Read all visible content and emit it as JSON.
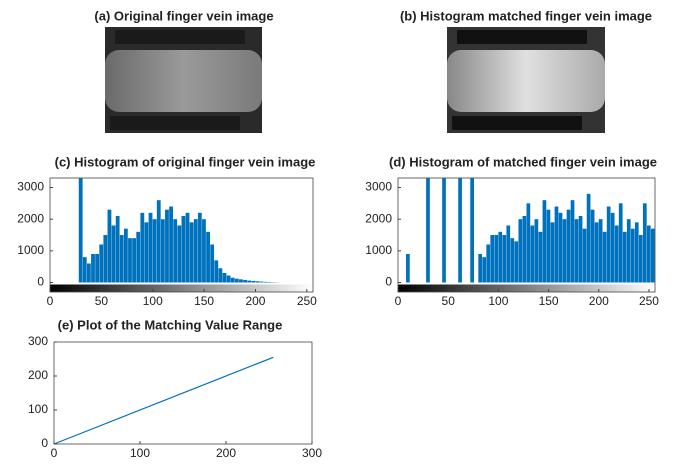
{
  "images": [
    {
      "title": "(a) Original finger vein image"
    },
    {
      "title": "(b) Histogram matched finger vein image"
    }
  ],
  "chart_data": [
    {
      "type": "histogram",
      "title": "(c) Histogram of original finger vein image",
      "color": "#0072bd",
      "bins": [
        0,
        4,
        8,
        12,
        16,
        20,
        24,
        28,
        32,
        36,
        40,
        44,
        48,
        52,
        56,
        60,
        64,
        68,
        72,
        76,
        80,
        84,
        88,
        92,
        96,
        100,
        104,
        108,
        112,
        116,
        120,
        124,
        128,
        132,
        136,
        140,
        144,
        148,
        152,
        156,
        160,
        164,
        168,
        172,
        176,
        180,
        184,
        188,
        192,
        196,
        200,
        204,
        208,
        212,
        216,
        220,
        224,
        228,
        232,
        236,
        240,
        244,
        248,
        252,
        256
      ],
      "counts": [
        0,
        0,
        0,
        0,
        0,
        0,
        0,
        3300,
        800,
        600,
        900,
        900,
        1200,
        1500,
        2300,
        1800,
        2100,
        1500,
        1700,
        1400,
        1400,
        1600,
        2200,
        1900,
        2200,
        2000,
        2600,
        2000,
        2300,
        2400,
        2000,
        1800,
        2100,
        2200,
        1900,
        2000,
        2200,
        2000,
        1600,
        1200,
        700,
        450,
        300,
        220,
        150,
        120,
        100,
        80,
        60,
        50,
        40,
        30,
        20,
        15,
        10,
        5,
        0,
        0,
        0,
        0,
        0,
        0,
        0,
        0
      ],
      "xlim": [
        0,
        256
      ],
      "xticks": [
        0,
        50,
        100,
        150,
        200,
        250
      ],
      "ylim": [
        -300,
        3300
      ],
      "yticks": [
        0,
        1000,
        2000,
        3000
      ]
    },
    {
      "type": "histogram",
      "title": "(d) Histogram of matched finger vein image",
      "color": "#0072bd",
      "bins": [
        0,
        4,
        8,
        12,
        16,
        20,
        24,
        28,
        32,
        36,
        40,
        44,
        48,
        52,
        56,
        60,
        64,
        68,
        72,
        76,
        80,
        84,
        88,
        92,
        96,
        100,
        104,
        108,
        112,
        116,
        120,
        124,
        128,
        132,
        136,
        140,
        144,
        148,
        152,
        156,
        160,
        164,
        168,
        172,
        176,
        180,
        184,
        188,
        192,
        196,
        200,
        204,
        208,
        212,
        216,
        220,
        224,
        228,
        232,
        236,
        240,
        244,
        248,
        252,
        256
      ],
      "counts": [
        0,
        0,
        900,
        0,
        0,
        0,
        0,
        3300,
        0,
        0,
        0,
        3300,
        0,
        0,
        0,
        3300,
        0,
        0,
        3300,
        0,
        900,
        800,
        1200,
        1500,
        1500,
        1600,
        1500,
        1800,
        1400,
        1300,
        2000,
        2100,
        2500,
        1800,
        2000,
        1600,
        2600,
        2300,
        1900,
        2400,
        2200,
        2000,
        2300,
        2600,
        2000,
        2100,
        1700,
        2800,
        2300,
        1900,
        2000,
        1600,
        2400,
        2200,
        1800,
        2500,
        1600,
        2000,
        1700,
        1900,
        1500,
        2500,
        1800,
        1700
      ],
      "xlim": [
        0,
        256
      ],
      "xticks": [
        0,
        50,
        100,
        150,
        200,
        250
      ],
      "ylim": [
        -300,
        3300
      ],
      "yticks": [
        0,
        1000,
        2000,
        3000
      ]
    },
    {
      "type": "line",
      "title": "(e) Plot of the Matching Value Range",
      "color": "#0072bd",
      "x": [
        0,
        255
      ],
      "values": [
        0,
        255
      ],
      "xlim": [
        0,
        300
      ],
      "xticks": [
        0,
        100,
        200,
        300
      ],
      "ylim": [
        0,
        300
      ],
      "yticks": [
        0,
        100,
        200,
        300
      ]
    }
  ]
}
